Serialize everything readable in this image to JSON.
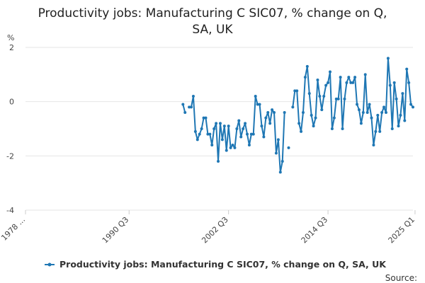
{
  "chart_data": {
    "type": "line",
    "title_lines": [
      "Productivity jobs: Manufacturing C SIC07, % change on Q,",
      "SA, UK"
    ],
    "ylabel": "%",
    "ylim": [
      -4,
      2
    ],
    "yticks": [
      2,
      0,
      -2,
      -4
    ],
    "ytick_labels": [
      "2",
      "0",
      "-2",
      "-4"
    ],
    "x_range": [
      0,
      187
    ],
    "x_ticks": [
      {
        "label": "1978 ...",
        "index": 0
      },
      {
        "label": "1990 Q3",
        "index": 50
      },
      {
        "label": "2002 Q3",
        "index": 98
      },
      {
        "label": "2014 Q3",
        "index": 146
      },
      {
        "label": "2025 Q1",
        "index": 188
      }
    ],
    "series": [
      {
        "name": "Productivity jobs: Manufacturing C SIC07, % change on Q, SA, UK",
        "color": "#1f77b4",
        "start_index": 76,
        "values": [
          -0.1,
          -0.4,
          null,
          -0.2,
          -0.2,
          0.2,
          -1.1,
          -1.4,
          -1.2,
          -1.0,
          -0.6,
          -0.6,
          -1.2,
          -1.2,
          -1.6,
          -1.0,
          -0.8,
          -2.2,
          -0.8,
          -1.4,
          -0.9,
          -1.8,
          -0.9,
          -1.7,
          -1.6,
          -1.7,
          -1.0,
          -0.7,
          -1.3,
          -1.0,
          -0.8,
          -1.2,
          -1.6,
          -1.2,
          -1.2,
          0.2,
          -0.1,
          -0.1,
          -0.9,
          -1.3,
          -0.6,
          -0.4,
          -0.8,
          -0.3,
          -0.4,
          -1.9,
          -1.4,
          -2.6,
          -2.2,
          -0.4,
          null,
          -1.7,
          null,
          -0.2,
          0.4,
          0.4,
          -0.8,
          -1.1,
          -0.4,
          0.9,
          1.3,
          0.3,
          -0.5,
          -0.9,
          -0.6,
          0.8,
          0.2,
          -0.3,
          0.2,
          0.6,
          0.7,
          1.1,
          -1.0,
          -0.6,
          0.1,
          0.1,
          0.9,
          -1.0,
          0.1,
          0.7,
          0.9,
          0.7,
          0.7,
          0.9,
          -0.1,
          -0.3,
          -0.8,
          -0.4,
          1.0,
          -0.4,
          -0.1,
          -0.6,
          -1.6,
          -1.1,
          -0.5,
          -1.1,
          -0.4,
          -0.2,
          -0.4,
          1.6,
          0.6,
          -1.0,
          0.7,
          0.1,
          -0.9,
          -0.5,
          0.3,
          -0.7,
          1.2,
          0.7,
          -0.1,
          -0.2
        ]
      }
    ],
    "legend_position": "bottom-center",
    "source_label": "Source:",
    "grid": true
  }
}
